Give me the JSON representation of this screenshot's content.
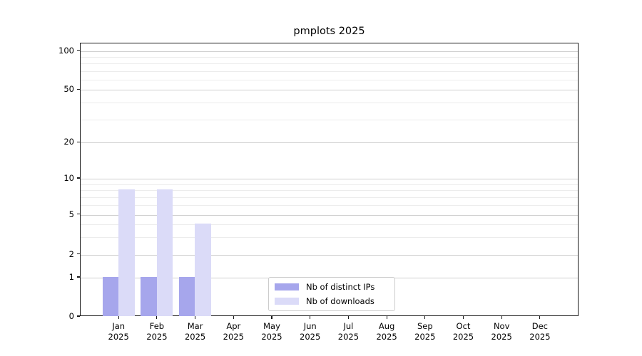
{
  "title": "pmplots 2025",
  "chart_data": {
    "type": "bar",
    "title": "pmplots 2025",
    "categories": [
      "Jan",
      "Feb",
      "Mar",
      "Apr",
      "May",
      "Jun",
      "Jul",
      "Aug",
      "Sep",
      "Oct",
      "Nov",
      "Dec"
    ],
    "category_sub_label": "2025",
    "series": [
      {
        "name": "Nb of distinct IPs",
        "color": "#a6a6ec",
        "values": [
          1,
          1,
          1,
          0,
          0,
          0,
          0,
          0,
          0,
          0,
          0,
          0
        ]
      },
      {
        "name": "Nb of downloads",
        "color": "#dbdbf8",
        "values": [
          8,
          8,
          4,
          0,
          0,
          0,
          0,
          0,
          0,
          0,
          0,
          0
        ]
      }
    ],
    "xlabel": "",
    "ylabel": "",
    "y_axis": {
      "scale": "log-like (linear 0-1, logarithmic above 1)",
      "major_ticks": [
        0,
        1,
        2,
        5,
        10,
        20,
        50,
        100
      ],
      "minor_ticks": [
        3,
        4,
        6,
        7,
        8,
        9,
        30,
        40,
        60,
        70,
        80,
        90
      ],
      "ylim": [
        0,
        115
      ]
    },
    "grid": "horizontal major and minor gridlines",
    "legend": {
      "position": "bottom-center inside plot",
      "entries": [
        "Nb of distinct IPs",
        "Nb of downloads"
      ]
    },
    "colors": {
      "major_grid": "#cfcfcf",
      "minor_grid": "#ececec",
      "spine": "#1a1a1a",
      "background": "#ffffff"
    }
  }
}
